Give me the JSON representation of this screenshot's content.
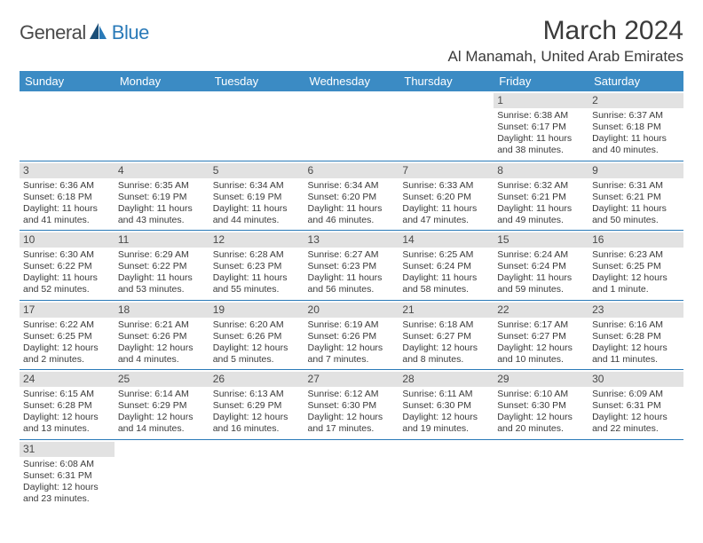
{
  "logo": {
    "general": "General",
    "blue": "Blue"
  },
  "title": "March 2024",
  "location": "Al Manamah, United Arab Emirates",
  "theme": {
    "header_bg": "#3b8bc4",
    "header_fg": "#ffffff",
    "daynum_bg": "#e2e2e2",
    "rule_color": "#2a7ab8",
    "text_color": "#3a3a3a",
    "logo_gray": "#4a4a4a",
    "logo_blue": "#2a7ab8"
  },
  "weekdays": [
    "Sunday",
    "Monday",
    "Tuesday",
    "Wednesday",
    "Thursday",
    "Friday",
    "Saturday"
  ],
  "weeks": [
    [
      null,
      null,
      null,
      null,
      null,
      {
        "n": "1",
        "sr": "Sunrise: 6:38 AM",
        "ss": "Sunset: 6:17 PM",
        "d1": "Daylight: 11 hours",
        "d2": "and 38 minutes."
      },
      {
        "n": "2",
        "sr": "Sunrise: 6:37 AM",
        "ss": "Sunset: 6:18 PM",
        "d1": "Daylight: 11 hours",
        "d2": "and 40 minutes."
      }
    ],
    [
      {
        "n": "3",
        "sr": "Sunrise: 6:36 AM",
        "ss": "Sunset: 6:18 PM",
        "d1": "Daylight: 11 hours",
        "d2": "and 41 minutes."
      },
      {
        "n": "4",
        "sr": "Sunrise: 6:35 AM",
        "ss": "Sunset: 6:19 PM",
        "d1": "Daylight: 11 hours",
        "d2": "and 43 minutes."
      },
      {
        "n": "5",
        "sr": "Sunrise: 6:34 AM",
        "ss": "Sunset: 6:19 PM",
        "d1": "Daylight: 11 hours",
        "d2": "and 44 minutes."
      },
      {
        "n": "6",
        "sr": "Sunrise: 6:34 AM",
        "ss": "Sunset: 6:20 PM",
        "d1": "Daylight: 11 hours",
        "d2": "and 46 minutes."
      },
      {
        "n": "7",
        "sr": "Sunrise: 6:33 AM",
        "ss": "Sunset: 6:20 PM",
        "d1": "Daylight: 11 hours",
        "d2": "and 47 minutes."
      },
      {
        "n": "8",
        "sr": "Sunrise: 6:32 AM",
        "ss": "Sunset: 6:21 PM",
        "d1": "Daylight: 11 hours",
        "d2": "and 49 minutes."
      },
      {
        "n": "9",
        "sr": "Sunrise: 6:31 AM",
        "ss": "Sunset: 6:21 PM",
        "d1": "Daylight: 11 hours",
        "d2": "and 50 minutes."
      }
    ],
    [
      {
        "n": "10",
        "sr": "Sunrise: 6:30 AM",
        "ss": "Sunset: 6:22 PM",
        "d1": "Daylight: 11 hours",
        "d2": "and 52 minutes."
      },
      {
        "n": "11",
        "sr": "Sunrise: 6:29 AM",
        "ss": "Sunset: 6:22 PM",
        "d1": "Daylight: 11 hours",
        "d2": "and 53 minutes."
      },
      {
        "n": "12",
        "sr": "Sunrise: 6:28 AM",
        "ss": "Sunset: 6:23 PM",
        "d1": "Daylight: 11 hours",
        "d2": "and 55 minutes."
      },
      {
        "n": "13",
        "sr": "Sunrise: 6:27 AM",
        "ss": "Sunset: 6:23 PM",
        "d1": "Daylight: 11 hours",
        "d2": "and 56 minutes."
      },
      {
        "n": "14",
        "sr": "Sunrise: 6:25 AM",
        "ss": "Sunset: 6:24 PM",
        "d1": "Daylight: 11 hours",
        "d2": "and 58 minutes."
      },
      {
        "n": "15",
        "sr": "Sunrise: 6:24 AM",
        "ss": "Sunset: 6:24 PM",
        "d1": "Daylight: 11 hours",
        "d2": "and 59 minutes."
      },
      {
        "n": "16",
        "sr": "Sunrise: 6:23 AM",
        "ss": "Sunset: 6:25 PM",
        "d1": "Daylight: 12 hours",
        "d2": "and 1 minute."
      }
    ],
    [
      {
        "n": "17",
        "sr": "Sunrise: 6:22 AM",
        "ss": "Sunset: 6:25 PM",
        "d1": "Daylight: 12 hours",
        "d2": "and 2 minutes."
      },
      {
        "n": "18",
        "sr": "Sunrise: 6:21 AM",
        "ss": "Sunset: 6:26 PM",
        "d1": "Daylight: 12 hours",
        "d2": "and 4 minutes."
      },
      {
        "n": "19",
        "sr": "Sunrise: 6:20 AM",
        "ss": "Sunset: 6:26 PM",
        "d1": "Daylight: 12 hours",
        "d2": "and 5 minutes."
      },
      {
        "n": "20",
        "sr": "Sunrise: 6:19 AM",
        "ss": "Sunset: 6:26 PM",
        "d1": "Daylight: 12 hours",
        "d2": "and 7 minutes."
      },
      {
        "n": "21",
        "sr": "Sunrise: 6:18 AM",
        "ss": "Sunset: 6:27 PM",
        "d1": "Daylight: 12 hours",
        "d2": "and 8 minutes."
      },
      {
        "n": "22",
        "sr": "Sunrise: 6:17 AM",
        "ss": "Sunset: 6:27 PM",
        "d1": "Daylight: 12 hours",
        "d2": "and 10 minutes."
      },
      {
        "n": "23",
        "sr": "Sunrise: 6:16 AM",
        "ss": "Sunset: 6:28 PM",
        "d1": "Daylight: 12 hours",
        "d2": "and 11 minutes."
      }
    ],
    [
      {
        "n": "24",
        "sr": "Sunrise: 6:15 AM",
        "ss": "Sunset: 6:28 PM",
        "d1": "Daylight: 12 hours",
        "d2": "and 13 minutes."
      },
      {
        "n": "25",
        "sr": "Sunrise: 6:14 AM",
        "ss": "Sunset: 6:29 PM",
        "d1": "Daylight: 12 hours",
        "d2": "and 14 minutes."
      },
      {
        "n": "26",
        "sr": "Sunrise: 6:13 AM",
        "ss": "Sunset: 6:29 PM",
        "d1": "Daylight: 12 hours",
        "d2": "and 16 minutes."
      },
      {
        "n": "27",
        "sr": "Sunrise: 6:12 AM",
        "ss": "Sunset: 6:30 PM",
        "d1": "Daylight: 12 hours",
        "d2": "and 17 minutes."
      },
      {
        "n": "28",
        "sr": "Sunrise: 6:11 AM",
        "ss": "Sunset: 6:30 PM",
        "d1": "Daylight: 12 hours",
        "d2": "and 19 minutes."
      },
      {
        "n": "29",
        "sr": "Sunrise: 6:10 AM",
        "ss": "Sunset: 6:30 PM",
        "d1": "Daylight: 12 hours",
        "d2": "and 20 minutes."
      },
      {
        "n": "30",
        "sr": "Sunrise: 6:09 AM",
        "ss": "Sunset: 6:31 PM",
        "d1": "Daylight: 12 hours",
        "d2": "and 22 minutes."
      }
    ],
    [
      {
        "n": "31",
        "sr": "Sunrise: 6:08 AM",
        "ss": "Sunset: 6:31 PM",
        "d1": "Daylight: 12 hours",
        "d2": "and 23 minutes."
      },
      null,
      null,
      null,
      null,
      null,
      null
    ]
  ]
}
